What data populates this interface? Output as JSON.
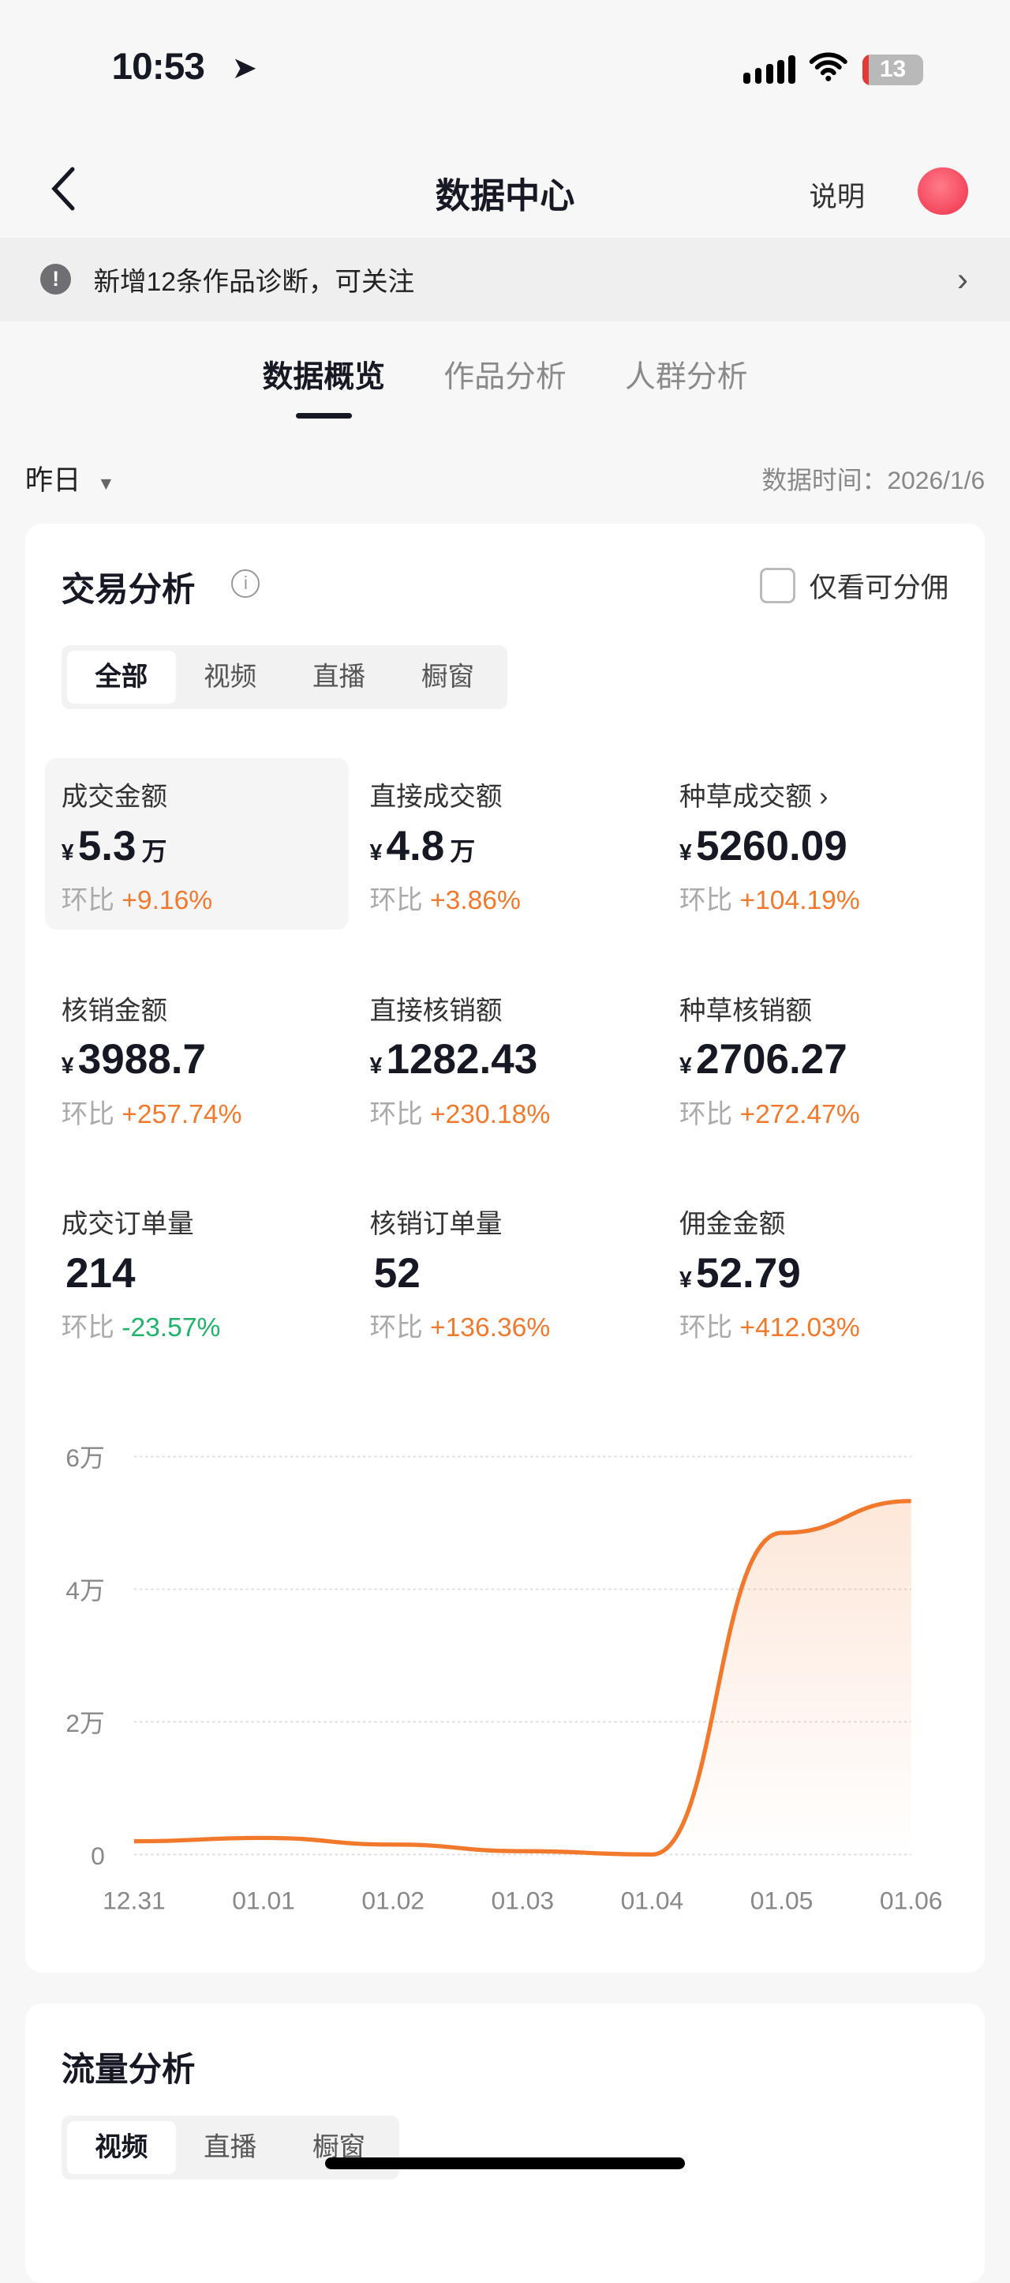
{
  "status_bar": {
    "time": "10:53",
    "battery": "13"
  },
  "nav": {
    "title": "数据中心",
    "explain": "说明"
  },
  "notice": {
    "text": "新增12条作品诊断，可关注"
  },
  "tabs": [
    {
      "label": "数据概览",
      "active": true
    },
    {
      "label": "作品分析"
    },
    {
      "label": "人群分析"
    }
  ],
  "filter": {
    "period": "昨日",
    "data_time": "数据时间：2026/1/6"
  },
  "trade": {
    "title": "交易分析",
    "checkbox_label": "仅看可分佣",
    "segments": [
      "全部",
      "视频",
      "直播",
      "橱窗"
    ],
    "metrics": [
      {
        "label": "成交金额",
        "currency": "¥",
        "value": "5.3",
        "unit": "万",
        "ratio_label": "环比",
        "change": "+9.16%",
        "trend": "up"
      },
      {
        "label": "直接成交额",
        "currency": "¥",
        "value": "4.8",
        "unit": "万",
        "ratio_label": "环比",
        "change": "+3.86%",
        "trend": "up"
      },
      {
        "label": "种草成交额 ›",
        "currency": "¥",
        "value": "5260.09",
        "unit": "",
        "ratio_label": "环比",
        "change": "+104.19%",
        "trend": "up"
      },
      {
        "label": "核销金额",
        "currency": "¥",
        "value": "3988.7",
        "unit": "",
        "ratio_label": "环比",
        "change": "+257.74%",
        "trend": "up"
      },
      {
        "label": "直接核销额",
        "currency": "¥",
        "value": "1282.43",
        "unit": "",
        "ratio_label": "环比",
        "change": "+230.18%",
        "trend": "up"
      },
      {
        "label": "种草核销额",
        "currency": "¥",
        "value": "2706.27",
        "unit": "",
        "ratio_label": "环比",
        "change": "+272.47%",
        "trend": "up"
      },
      {
        "label": "成交订单量",
        "currency": "",
        "value": "214",
        "unit": "",
        "ratio_label": "环比",
        "change": "-23.57%",
        "trend": "down"
      },
      {
        "label": "核销订单量",
        "currency": "",
        "value": "52",
        "unit": "",
        "ratio_label": "环比",
        "change": "+136.36%",
        "trend": "up"
      },
      {
        "label": "佣金金额",
        "currency": "¥",
        "value": "52.79",
        "unit": "",
        "ratio_label": "环比",
        "change": "+412.03%",
        "trend": "up"
      }
    ]
  },
  "chart_data": {
    "type": "area",
    "categories": [
      "12.31",
      "01.01",
      "01.02",
      "01.03",
      "01.04",
      "01.05",
      "01.06"
    ],
    "values": [
      2000,
      2500,
      1500,
      500,
      0,
      48500,
      53300
    ],
    "yticks": [
      "0",
      "2万",
      "4万",
      "6万"
    ],
    "ylim": [
      0,
      60000
    ],
    "grid": true,
    "color": "#f2792c"
  },
  "traffic": {
    "title": "流量分析",
    "segments": [
      "视频",
      "直播",
      "橱窗"
    ]
  }
}
